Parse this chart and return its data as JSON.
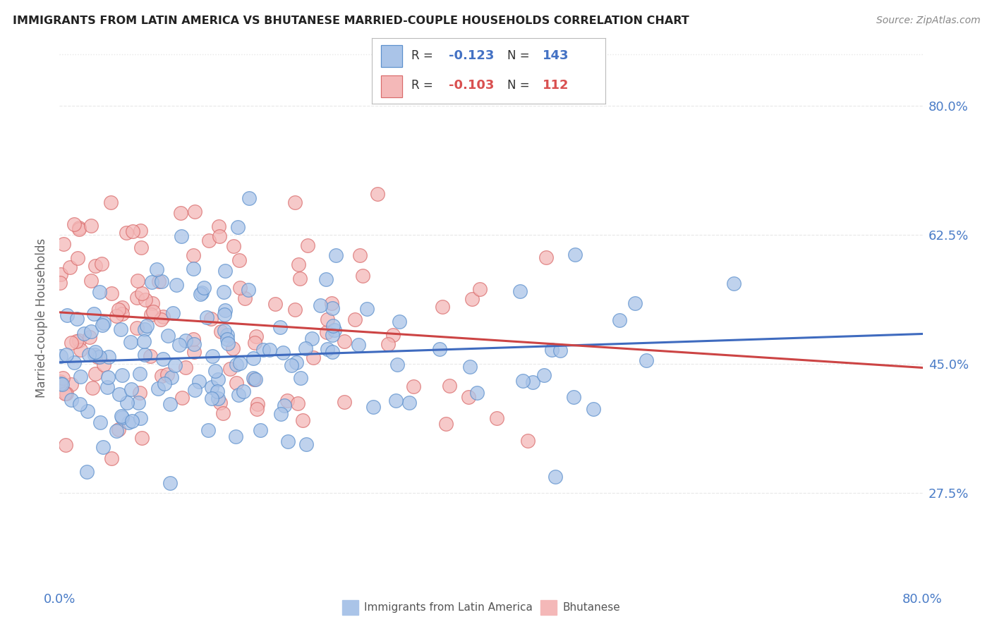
{
  "title": "IMMIGRANTS FROM LATIN AMERICA VS BHUTANESE MARRIED-COUPLE HOUSEHOLDS CORRELATION CHART",
  "source": "Source: ZipAtlas.com",
  "ylabel": "Married-couple Households",
  "x_min": 0.0,
  "x_max": 0.8,
  "y_min": 0.15,
  "y_max": 0.875,
  "x_tick_positions": [
    0.0,
    0.1,
    0.2,
    0.3,
    0.4,
    0.5,
    0.6,
    0.7,
    0.8
  ],
  "x_tick_labels": [
    "0.0%",
    "",
    "",
    "",
    "",
    "",
    "",
    "",
    "80.0%"
  ],
  "y_tick_positions": [
    0.275,
    0.45,
    0.625,
    0.8
  ],
  "y_tick_labels": [
    "27.5%",
    "45.0%",
    "62.5%",
    "80.0%"
  ],
  "blue_R": "-0.123",
  "blue_N": "143",
  "pink_R": "-0.103",
  "pink_N": "112",
  "blue_fill": "#aac4e8",
  "pink_fill": "#f4b8b8",
  "blue_edge": "#5b8fcc",
  "pink_edge": "#d96b6b",
  "blue_line": "#3f6bbf",
  "pink_line": "#cc4444",
  "legend_blue_label": "Immigrants from Latin America",
  "legend_pink_label": "Bhutanese",
  "background_color": "#ffffff",
  "grid_color": "#e8e8e8",
  "blue_seed": 77,
  "pink_seed": 88
}
